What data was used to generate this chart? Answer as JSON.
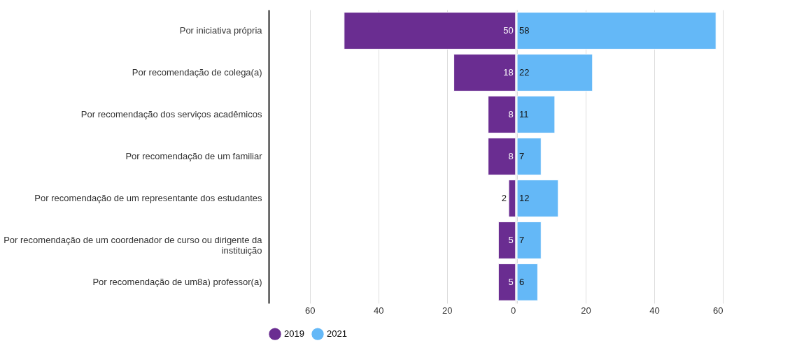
{
  "chart_data": [
    {
      "type": "bar",
      "orientation": "horizontal",
      "categories": [
        "Por iniciativa própria",
        "Por recomendação de colega(a)",
        "Por recomendação dos serviços acadêmicos",
        "Por recomendação de um familiar",
        "Por recomendação de um representante dos estudantes",
        "Por recomendação de um coordenador de curso ou dirigente da instituição",
        "Por recomendação de um8a) professor(a)"
      ],
      "series": [
        {
          "name": "2019",
          "color": "#6a2d91",
          "values": [
            50,
            18,
            8,
            8,
            2,
            5,
            5
          ]
        }
      ],
      "xlim": [
        72,
        0
      ],
      "xticks": [
        60,
        40,
        20,
        0
      ],
      "data_labels": true,
      "grid": "x",
      "legend": "bottom"
    },
    {
      "type": "bar",
      "orientation": "horizontal",
      "categories": [
        null,
        null,
        null,
        null,
        null,
        null,
        null
      ],
      "series": [
        {
          "name": "2021",
          "color": "#64b8f7",
          "values": [
            58,
            22,
            11,
            7,
            12,
            7,
            6
          ]
        }
      ],
      "xlim": [
        0,
        60
      ],
      "xticks": [
        {
          "value": 0,
          "label": null
        },
        20,
        40,
        60
      ],
      "data_labels": true,
      "grid": "x",
      "legend": "bottom",
      "tick_labels": "x"
    }
  ]
}
